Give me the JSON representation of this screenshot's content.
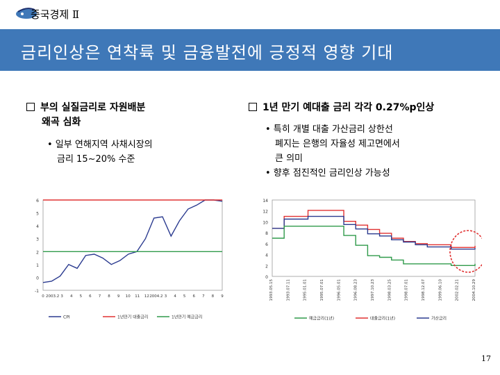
{
  "header": {
    "title": "중국경제 Ⅱ"
  },
  "slide": {
    "title": "금리인상은 연착륙 및 금융발전에 긍정적 영향 기대",
    "page": "17"
  },
  "left": {
    "heading_line1": "부의 실질금리로 자원배분",
    "heading_line2": "왜곡 심화",
    "sub_line1": "• 일부 연해지역 사채시장의",
    "sub_line2": "금리 15~20% 수준"
  },
  "right": {
    "heading": "1년 만기 예대출 금리 각각 0.27%p인상",
    "sub1_line1": "• 특히 개별 대출 가산금리 상한선",
    "sub1_line2": "폐지는 은행의 자율성 제고면에서",
    "sub1_line3": "큰 의미",
    "sub2": "• 향후 점진적인 금리인상 가능성"
  },
  "colors": {
    "title_bar": "#3f78b8",
    "red": "#e03030",
    "blue": "#2a3a8f",
    "green": "#2f9a4a"
  },
  "chart_data": [
    {
      "type": "line",
      "ylim": [
        -1,
        6
      ],
      "yticks": [
        "6",
        "5",
        "4",
        "3",
        "2",
        "1",
        "0",
        "-1"
      ],
      "xticks": [
        "0",
        "2003.2",
        "3",
        "4",
        "5",
        "6",
        "7",
        "8",
        "9",
        "10",
        "11",
        "12",
        "2004.2",
        "3",
        "4",
        "5",
        "6",
        "7",
        "8",
        "9"
      ],
      "series": [
        {
          "name": "CPI",
          "color": "#2a3a8f",
          "values": [
            -0.4,
            -0.3,
            0.1,
            1.0,
            0.7,
            1.7,
            1.8,
            1.5,
            1.0,
            1.3,
            1.8,
            2.0,
            3.0,
            4.6,
            4.7,
            3.2,
            4.4,
            5.3,
            5.6,
            6.0,
            6.0,
            5.9
          ]
        },
        {
          "name": "1년만기 대출금리",
          "color": "#e03030",
          "values": [
            6.0,
            6.0,
            6.0,
            6.0,
            6.0,
            6.0,
            6.0,
            6.0,
            6.0,
            6.0,
            6.0,
            6.0,
            6.0,
            6.0,
            6.0,
            6.0,
            6.0,
            6.0,
            6.0,
            6.0,
            6.0,
            6.0
          ]
        },
        {
          "name": "1년만기 예금금리",
          "color": "#2f9a4a",
          "values": [
            2.0,
            2.0,
            2.0,
            2.0,
            2.0,
            2.0,
            2.0,
            2.0,
            2.0,
            2.0,
            2.0,
            2.0,
            2.0,
            2.0,
            2.0,
            2.0,
            2.0,
            2.0,
            2.0,
            2.0,
            2.0,
            2.0
          ]
        }
      ],
      "legend": [
        "CPI",
        "1년만기 대출금리",
        "1년만기 예금금리"
      ]
    },
    {
      "type": "line",
      "ylim": [
        0,
        14
      ],
      "yticks": [
        "14",
        "12",
        "10",
        "8",
        "6",
        "4",
        "2",
        "0"
      ],
      "xticks": [
        "1993.05.15",
        "1993.07.11",
        "1995.01.01",
        "1995.07.01",
        "1996.05.01",
        "1996.08.23",
        "1997.10.23",
        "1998.03.25",
        "1998.07.01",
        "1998.12.07",
        "1999.06.10",
        "2002.02.21",
        "2004.10.29"
      ],
      "series": [
        {
          "name": "대출금리",
          "color": "#e03030",
          "values": [
            8.8,
            11.0,
            11.0,
            12.1,
            12.1,
            12.1,
            10.1,
            9.4,
            8.6,
            7.9,
            7.0,
            6.4,
            6.0,
            5.8,
            5.8,
            5.3,
            5.3,
            5.6
          ]
        },
        {
          "name": "가산금리",
          "color": "#2a3a8f",
          "values": [
            8.8,
            10.5,
            10.5,
            11.0,
            11.0,
            11.0,
            9.5,
            8.7,
            7.8,
            7.4,
            6.7,
            6.3,
            5.8,
            5.4,
            5.4,
            5.0,
            5.0,
            5.2
          ]
        },
        {
          "name": "예금금리",
          "color": "#2f9a4a",
          "values": [
            7.0,
            9.2,
            9.2,
            9.2,
            9.2,
            9.2,
            7.5,
            5.7,
            3.8,
            3.5,
            3.0,
            2.3,
            2.3,
            2.3,
            2.3,
            2.0,
            2.0,
            2.3
          ]
        }
      ],
      "legend": [
        "예금금리(1년)",
        "대출금리(1년)",
        "가산금리"
      ]
    }
  ]
}
